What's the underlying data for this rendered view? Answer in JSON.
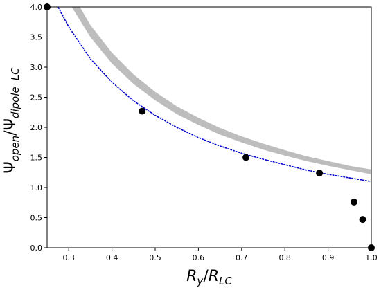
{
  "chart_data": {
    "type": "scatter",
    "xlabel": {
      "main1": "R",
      "sub1": "y",
      "slash": "/",
      "main2": "R",
      "sub2": "LC"
    },
    "ylabel": {
      "main1": "Ψ",
      "sub1": "open",
      "slash": "/",
      "main2": "Ψ",
      "sub2": "dipole",
      "sub3": "LC"
    },
    "xlim": [
      0.25,
      1.0
    ],
    "ylim": [
      0.0,
      4.0
    ],
    "x_ticks": [
      0.3,
      0.4,
      0.5,
      0.6,
      0.7,
      0.8,
      0.9,
      1.0
    ],
    "x_tick_labels": [
      "0.3",
      "0.4",
      "0.5",
      "0.6",
      "0.7",
      "0.8",
      "0.9",
      "1.0"
    ],
    "y_ticks": [
      0.0,
      0.5,
      1.0,
      1.5,
      2.0,
      2.5,
      3.0,
      3.5,
      4.0
    ],
    "y_tick_labels": [
      "0.0",
      "0.5",
      "1.0",
      "1.5",
      "2.0",
      "2.5",
      "3.0",
      "3.5",
      "4.0"
    ],
    "grid": false,
    "series": [
      {
        "kind": "band",
        "color": "#bdbdbd",
        "x": [
          0.3,
          0.35,
          0.4,
          0.45,
          0.5,
          0.55,
          0.6,
          0.65,
          0.7,
          0.75,
          0.8,
          0.85,
          0.9,
          0.95,
          1.0
        ],
        "upper": [
          4.32,
          3.7,
          3.24,
          2.88,
          2.59,
          2.35,
          2.16,
          1.99,
          1.85,
          1.73,
          1.62,
          1.52,
          1.44,
          1.36,
          1.3
        ],
        "lower": [
          4.08,
          3.5,
          3.06,
          2.72,
          2.45,
          2.22,
          2.04,
          1.88,
          1.75,
          1.63,
          1.53,
          1.44,
          1.36,
          1.29,
          1.22
        ]
      },
      {
        "kind": "dotted-line",
        "color": "#0000cc",
        "x": [
          0.27,
          0.3,
          0.35,
          0.4,
          0.45,
          0.5,
          0.55,
          0.6,
          0.65,
          0.7,
          0.75,
          0.8,
          0.85,
          0.9,
          0.95,
          1.0
        ],
        "y": [
          4.07,
          3.67,
          3.14,
          2.75,
          2.44,
          2.2,
          2.0,
          1.83,
          1.69,
          1.57,
          1.47,
          1.38,
          1.29,
          1.22,
          1.16,
          1.1
        ]
      },
      {
        "kind": "points",
        "color": "#000000",
        "x": [
          0.25,
          0.47,
          0.71,
          0.88,
          0.96,
          0.98,
          1.0
        ],
        "y": [
          4.0,
          2.27,
          1.5,
          1.24,
          0.76,
          0.47,
          0.0
        ]
      }
    ]
  }
}
